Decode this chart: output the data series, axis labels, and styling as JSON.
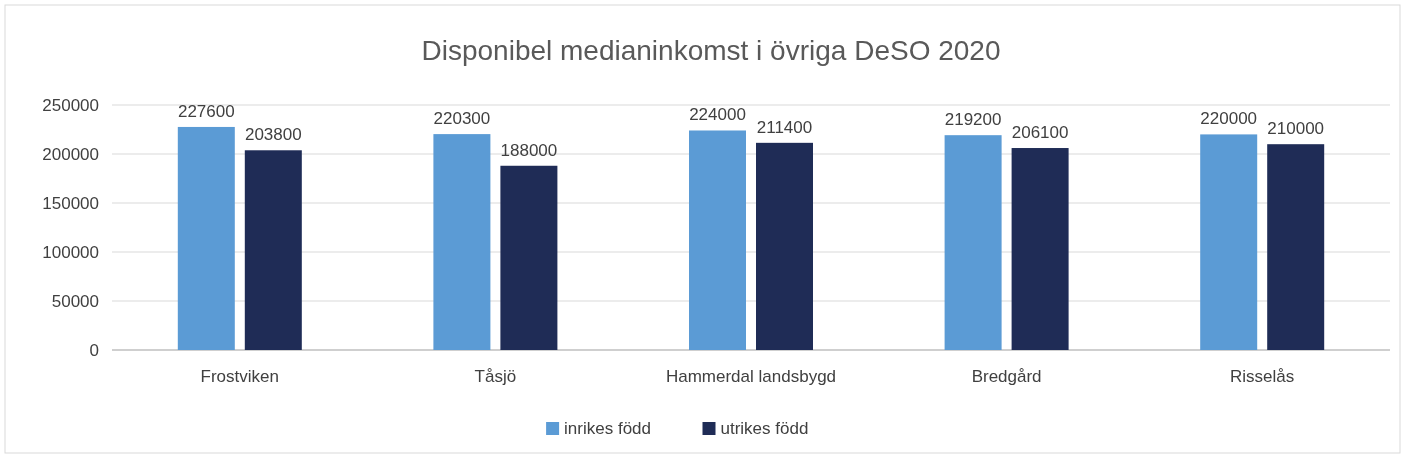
{
  "chart_data": {
    "type": "bar",
    "title": "Disponibel medianinkomst i övriga DeSO 2020",
    "categories": [
      "Frostviken",
      "Tåsjö",
      "Hammerdal landsbygd",
      "Bredgård",
      "Risselås"
    ],
    "series": [
      {
        "name": "inrikes född",
        "color": "#5b9bd5",
        "values": [
          227600,
          220300,
          224000,
          219200,
          220000
        ]
      },
      {
        "name": "utrikes född",
        "color": "#1f2c56",
        "values": [
          203800,
          188000,
          211400,
          206100,
          210000
        ]
      }
    ],
    "ylim": [
      0,
      250000
    ],
    "yticks": [
      0,
      50000,
      100000,
      150000,
      200000,
      250000
    ],
    "grid": "y",
    "legend": "bottom",
    "data_labels": true
  }
}
